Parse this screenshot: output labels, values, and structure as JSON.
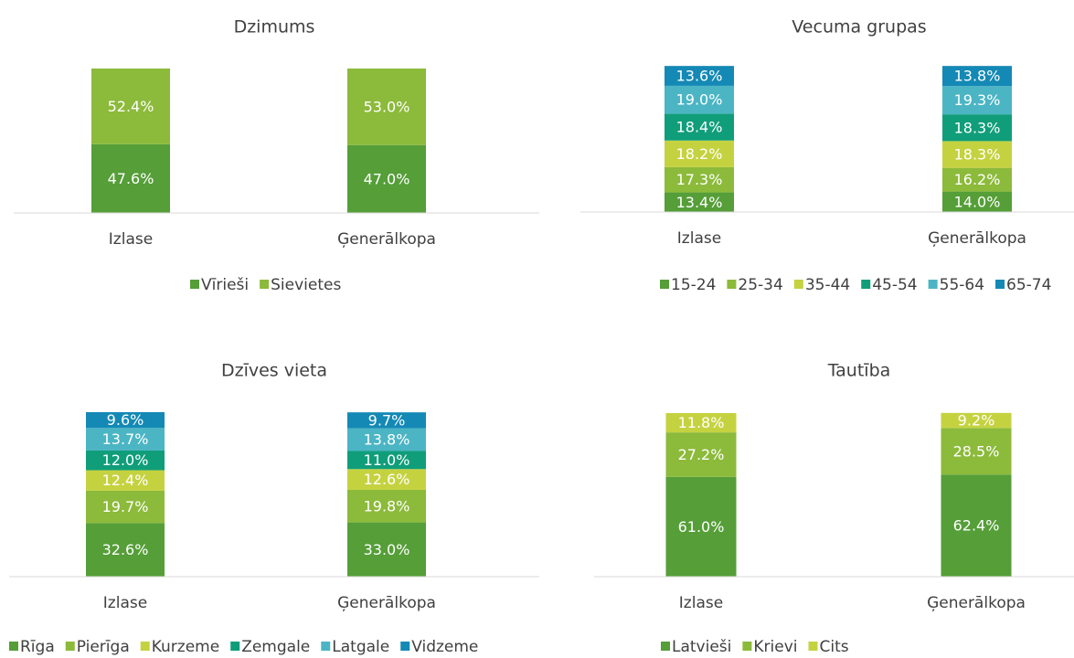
{
  "chart_data": [
    {
      "type": "bar",
      "stacked": true,
      "title": "Dzimums",
      "categories": [
        "Izlase",
        "Ģenerālkopa"
      ],
      "ylim": [
        0,
        100
      ],
      "series": [
        {
          "name": "Vīrieši",
          "color": "#559e38",
          "values": [
            47.6,
            47.0
          ],
          "value_labels": [
            "47.6%",
            "47.0%"
          ]
        },
        {
          "name": "Sievietes",
          "color": "#8cba3a",
          "values": [
            52.4,
            53.0
          ],
          "value_labels": [
            "52.4%",
            "53.0%"
          ]
        }
      ]
    },
    {
      "type": "bar",
      "stacked": true,
      "title": "Vecuma grupas",
      "categories": [
        "Izlase",
        "Ģenerālkopa"
      ],
      "ylim": [
        0,
        100
      ],
      "series": [
        {
          "name": "15-24",
          "color": "#559e38",
          "values": [
            13.4,
            14.0
          ],
          "value_labels": [
            "13.4%",
            "14.0%"
          ]
        },
        {
          "name": "25-34",
          "color": "#8cba3a",
          "values": [
            17.3,
            16.2
          ],
          "value_labels": [
            "17.3%",
            "16.2%"
          ]
        },
        {
          "name": "35-44",
          "color": "#c5d240",
          "values": [
            18.2,
            18.3
          ],
          "value_labels": [
            "18.2%",
            "18.3%"
          ]
        },
        {
          "name": "45-54",
          "color": "#109e7a",
          "values": [
            18.4,
            18.3
          ],
          "value_labels": [
            "18.4%",
            "18.3%"
          ]
        },
        {
          "name": "55-64",
          "color": "#4bb5c4",
          "values": [
            19.0,
            19.3
          ],
          "value_labels": [
            "19.0%",
            "19.3%"
          ]
        },
        {
          "name": "65-74",
          "color": "#1489b5",
          "values": [
            13.6,
            13.8
          ],
          "value_labels": [
            "13.6%",
            "13.8%"
          ]
        }
      ]
    },
    {
      "type": "bar",
      "stacked": true,
      "title": "Dzīves vieta",
      "categories": [
        "Izlase",
        "Ģenerālkopa"
      ],
      "ylim": [
        0,
        100
      ],
      "series": [
        {
          "name": "Rīga",
          "color": "#559e38",
          "values": [
            32.6,
            33.0
          ],
          "value_labels": [
            "32.6%",
            "33.0%"
          ]
        },
        {
          "name": "Pierīga",
          "color": "#8cba3a",
          "values": [
            19.7,
            19.8
          ],
          "value_labels": [
            "19.7%",
            "19.8%"
          ]
        },
        {
          "name": "Kurzeme",
          "color": "#c5d240",
          "values": [
            12.4,
            12.6
          ],
          "value_labels": [
            "12.4%",
            "12.6%"
          ]
        },
        {
          "name": "Zemgale",
          "color": "#109e7a",
          "values": [
            12.0,
            11.0
          ],
          "value_labels": [
            "12.0%",
            "11.0%"
          ]
        },
        {
          "name": "Latgale",
          "color": "#4bb5c4",
          "values": [
            13.7,
            13.8
          ],
          "value_labels": [
            "13.7%",
            "13.8%"
          ]
        },
        {
          "name": "Vidzeme",
          "color": "#1489b5",
          "values": [
            9.6,
            9.7
          ],
          "value_labels": [
            "9.6%",
            "9.7%"
          ]
        }
      ]
    },
    {
      "type": "bar",
      "stacked": true,
      "title": "Tautība",
      "categories": [
        "Izlase",
        "Ģenerālkopa"
      ],
      "ylim": [
        0,
        100
      ],
      "series": [
        {
          "name": "Latvieši",
          "color": "#559e38",
          "values": [
            61.0,
            62.4
          ],
          "value_labels": [
            "61.0%",
            "62.4%"
          ]
        },
        {
          "name": "Krievi",
          "color": "#8cba3a",
          "values": [
            27.2,
            28.5
          ],
          "value_labels": [
            "27.2%",
            "28.5%"
          ]
        },
        {
          "name": "Cits",
          "color": "#c5d240",
          "values": [
            11.8,
            9.2
          ],
          "value_labels": [
            "11.8%",
            "9.2%"
          ]
        }
      ]
    }
  ]
}
